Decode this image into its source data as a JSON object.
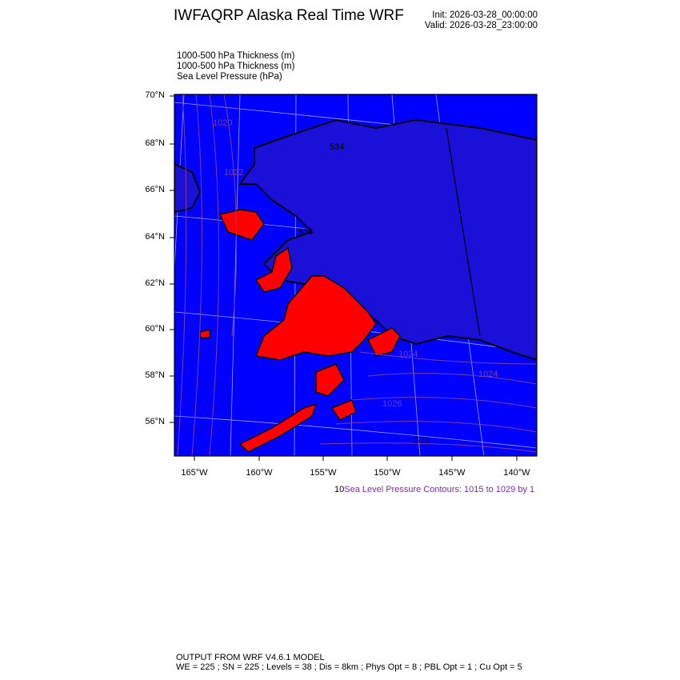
{
  "header": {
    "title": "IWFAQRP Alaska Real Time WRF",
    "init": "Init: 2026-03-28_00:00:00",
    "valid": "Valid: 2026-03-28_23:00:00"
  },
  "fields": [
    "1000-500 hPa Thickness   (m)",
    "1000-500 hPa Thickness   (m)",
    "Sea Level Pressure   (hPa)"
  ],
  "map": {
    "colors": {
      "ocean_fill": "#0000ff",
      "thickness_fill": "#ff0000",
      "slp_contour": "#7a3fa0",
      "coast": "#000000",
      "grid": "#9aa0ff"
    },
    "lat_labels": [
      "70°N",
      "68°N",
      "66°N",
      "64°N",
      "62°N",
      "60°N",
      "58°N",
      "56°N"
    ],
    "lon_labels": [
      "165°W",
      "160°W",
      "155°W",
      "150°W",
      "145°W",
      "140°W"
    ],
    "contour_labels": [
      "1020",
      "1022",
      "1024",
      "1026",
      "1024",
      "522",
      "534",
      "534"
    ]
  },
  "contour_info": {
    "prefix": "10",
    "text": "Sea Level Pressure Contours: 1015 to 1029 by 1"
  },
  "footer": {
    "line1": "OUTPUT FROM WRF V4.6.1 MODEL",
    "line2": "WE = 225 ; SN = 225 ; Levels = 38 ; Dis = 8km ; Phys Opt = 8 ; PBL Opt = 1 ; Cu Opt = 5"
  }
}
